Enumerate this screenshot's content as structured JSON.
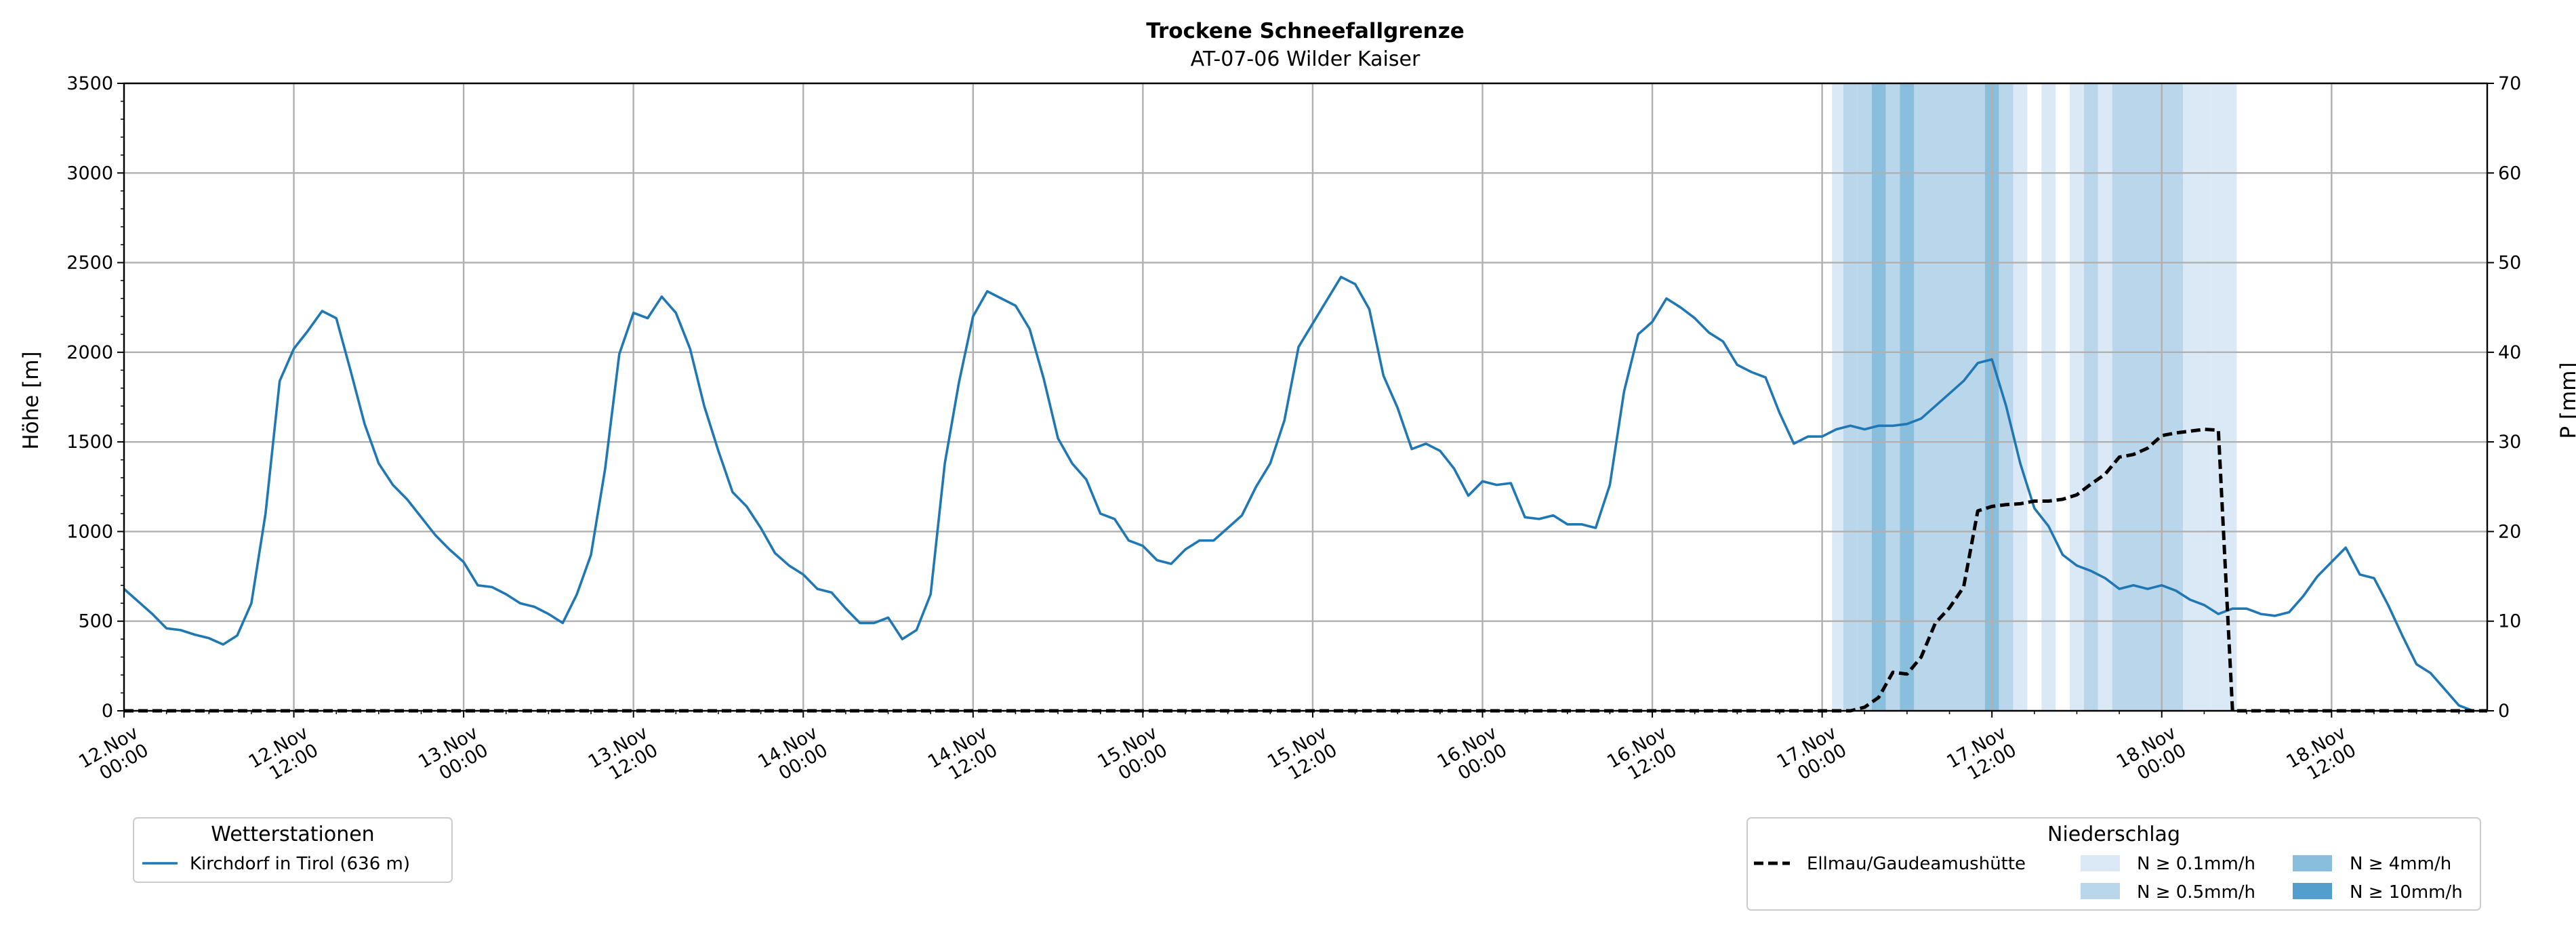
{
  "chart_data": {
    "type": "line",
    "title": "Trockene Schneefallgrenze",
    "subtitle": "AT-07-06 Wilder Kaiser",
    "ylabel_left": "Höhe [m]",
    "ylabel_right": "P [mm]",
    "ylim_left": [
      0,
      3500
    ],
    "ylim_right": [
      0,
      70
    ],
    "yticks_left": [
      "0",
      "500",
      "1000",
      "1500",
      "2000",
      "2500",
      "3000",
      "3500"
    ],
    "yticks_right": [
      "0",
      "10",
      "20",
      "30",
      "40",
      "50",
      "60",
      "70"
    ],
    "x_unit": "hours since 12.Nov 00:00",
    "xlim": [
      0,
      167
    ],
    "xticks": [
      {
        "x": 0,
        "l1": "12.Nov",
        "l2": "00:00"
      },
      {
        "x": 12,
        "l1": "12.Nov",
        "l2": "12:00"
      },
      {
        "x": 24,
        "l1": "13.Nov",
        "l2": "00:00"
      },
      {
        "x": 36,
        "l1": "13.Nov",
        "l2": "12:00"
      },
      {
        "x": 48,
        "l1": "14.Nov",
        "l2": "00:00"
      },
      {
        "x": 60,
        "l1": "14.Nov",
        "l2": "12:00"
      },
      {
        "x": 72,
        "l1": "15.Nov",
        "l2": "00:00"
      },
      {
        "x": 84,
        "l1": "15.Nov",
        "l2": "12:00"
      },
      {
        "x": 96,
        "l1": "16.Nov",
        "l2": "00:00"
      },
      {
        "x": 108,
        "l1": "16.Nov",
        "l2": "12:00"
      },
      {
        "x": 120,
        "l1": "17.Nov",
        "l2": "00:00"
      },
      {
        "x": 132,
        "l1": "17.Nov",
        "l2": "12:00"
      },
      {
        "x": 144,
        "l1": "18.Nov",
        "l2": "00:00"
      },
      {
        "x": 156,
        "l1": "18.Nov",
        "l2": "12:00"
      }
    ],
    "grid": true,
    "series": [
      {
        "name": "Kirchdorf in Tirol (636 m)",
        "color": "#1f77b4",
        "style": "solid",
        "axis": "left",
        "points": [
          [
            0,
            680
          ],
          [
            1,
            610
          ],
          [
            2,
            540
          ],
          [
            3,
            460
          ],
          [
            4,
            450
          ],
          [
            5,
            425
          ],
          [
            6,
            405
          ],
          [
            7,
            370
          ],
          [
            8,
            420
          ],
          [
            9,
            600
          ],
          [
            10,
            1100
          ],
          [
            11,
            1840
          ],
          [
            12,
            2020
          ],
          [
            13,
            2120
          ],
          [
            14,
            2230
          ],
          [
            15,
            2190
          ],
          [
            16,
            1900
          ],
          [
            17,
            1600
          ],
          [
            18,
            1380
          ],
          [
            19,
            1260
          ],
          [
            20,
            1180
          ],
          [
            21,
            1080
          ],
          [
            22,
            980
          ],
          [
            23,
            900
          ],
          [
            24,
            830
          ],
          [
            25,
            700
          ],
          [
            26,
            690
          ],
          [
            27,
            650
          ],
          [
            28,
            600
          ],
          [
            29,
            580
          ],
          [
            30,
            540
          ],
          [
            31,
            490
          ],
          [
            32,
            650
          ],
          [
            33,
            870
          ],
          [
            34,
            1350
          ],
          [
            35,
            1990
          ],
          [
            36,
            2220
          ],
          [
            37,
            2190
          ],
          [
            38,
            2310
          ],
          [
            39,
            2220
          ],
          [
            40,
            2020
          ],
          [
            41,
            1700
          ],
          [
            42,
            1450
          ],
          [
            43,
            1220
          ],
          [
            44,
            1140
          ],
          [
            45,
            1020
          ],
          [
            46,
            880
          ],
          [
            47,
            810
          ],
          [
            48,
            760
          ],
          [
            49,
            680
          ],
          [
            50,
            660
          ],
          [
            51,
            570
          ],
          [
            52,
            490
          ],
          [
            53,
            490
          ],
          [
            54,
            520
          ],
          [
            55,
            400
          ],
          [
            56,
            450
          ],
          [
            57,
            650
          ],
          [
            58,
            1380
          ],
          [
            59,
            1830
          ],
          [
            60,
            2200
          ],
          [
            61,
            2340
          ],
          [
            62,
            2300
          ],
          [
            63,
            2260
          ],
          [
            64,
            2130
          ],
          [
            65,
            1850
          ],
          [
            66,
            1520
          ],
          [
            67,
            1380
          ],
          [
            68,
            1290
          ],
          [
            69,
            1100
          ],
          [
            70,
            1070
          ],
          [
            71,
            950
          ],
          [
            72,
            920
          ],
          [
            73,
            840
          ],
          [
            74,
            820
          ],
          [
            75,
            900
          ],
          [
            76,
            950
          ],
          [
            77,
            950
          ],
          [
            78,
            1020
          ],
          [
            79,
            1090
          ],
          [
            80,
            1250
          ],
          [
            81,
            1380
          ],
          [
            82,
            1620
          ],
          [
            83,
            2030
          ],
          [
            84,
            2160
          ],
          [
            85,
            2290
          ],
          [
            86,
            2420
          ],
          [
            87,
            2380
          ],
          [
            88,
            2240
          ],
          [
            89,
            1870
          ],
          [
            90,
            1690
          ],
          [
            91,
            1460
          ],
          [
            92,
            1490
          ],
          [
            93,
            1450
          ],
          [
            94,
            1350
          ],
          [
            95,
            1200
          ],
          [
            96,
            1280
          ],
          [
            97,
            1260
          ],
          [
            98,
            1270
          ],
          [
            99,
            1080
          ],
          [
            100,
            1070
          ],
          [
            101,
            1090
          ],
          [
            102,
            1040
          ],
          [
            103,
            1040
          ],
          [
            104,
            1020
          ],
          [
            105,
            1260
          ],
          [
            106,
            1780
          ],
          [
            107,
            2100
          ],
          [
            108,
            2170
          ],
          [
            109,
            2300
          ],
          [
            110,
            2250
          ],
          [
            111,
            2190
          ],
          [
            112,
            2110
          ],
          [
            113,
            2060
          ],
          [
            114,
            1930
          ],
          [
            115,
            1890
          ],
          [
            116,
            1860
          ],
          [
            117,
            1660
          ],
          [
            118,
            1490
          ],
          [
            119,
            1530
          ],
          [
            120,
            1530
          ],
          [
            121,
            1570
          ],
          [
            122,
            1590
          ],
          [
            123,
            1570
          ],
          [
            124,
            1590
          ],
          [
            125,
            1590
          ],
          [
            126,
            1600
          ],
          [
            127,
            1630
          ],
          [
            128,
            1700
          ],
          [
            129,
            1770
          ],
          [
            130,
            1840
          ],
          [
            131,
            1940
          ],
          [
            132,
            1960
          ],
          [
            133,
            1700
          ],
          [
            134,
            1380
          ],
          [
            135,
            1130
          ],
          [
            136,
            1030
          ],
          [
            137,
            870
          ],
          [
            138,
            810
          ],
          [
            139,
            780
          ],
          [
            140,
            740
          ],
          [
            141,
            680
          ],
          [
            142,
            700
          ],
          [
            143,
            680
          ],
          [
            144,
            700
          ],
          [
            145,
            670
          ],
          [
            146,
            620
          ],
          [
            147,
            590
          ],
          [
            148,
            540
          ],
          [
            149,
            570
          ],
          [
            150,
            570
          ],
          [
            151,
            540
          ],
          [
            152,
            530
          ],
          [
            153,
            550
          ],
          [
            154,
            640
          ],
          [
            155,
            750
          ],
          [
            156,
            830
          ],
          [
            157,
            910
          ],
          [
            158,
            760
          ],
          [
            159,
            740
          ],
          [
            160,
            590
          ],
          [
            161,
            420
          ],
          [
            162,
            260
          ],
          [
            163,
            210
          ],
          [
            164,
            120
          ],
          [
            165,
            30
          ],
          [
            166,
            0
          ]
        ]
      },
      {
        "name": "Ellmau/Gaudeamushütte",
        "color": "#000000",
        "style": "dashed",
        "axis": "right",
        "points": [
          [
            0,
            0
          ],
          [
            122,
            0
          ],
          [
            123,
            0.4
          ],
          [
            124,
            1.5
          ],
          [
            125,
            4.3
          ],
          [
            126,
            4.1
          ],
          [
            127,
            6
          ],
          [
            128,
            9.8
          ],
          [
            129,
            11.5
          ],
          [
            130,
            13.8
          ],
          [
            131,
            22.3
          ],
          [
            132,
            22.8
          ],
          [
            133,
            23
          ],
          [
            134,
            23.1
          ],
          [
            135,
            23.4
          ],
          [
            136,
            23.4
          ],
          [
            137,
            23.6
          ],
          [
            138,
            24.1
          ],
          [
            139,
            25.3
          ],
          [
            140,
            26.4
          ],
          [
            141,
            28.3
          ],
          [
            142,
            28.6
          ],
          [
            143,
            29.3
          ],
          [
            144,
            30.7
          ],
          [
            145,
            31
          ],
          [
            146,
            31.2
          ],
          [
            147,
            31.4
          ],
          [
            148,
            31.3
          ],
          [
            149,
            0
          ],
          [
            167,
            0
          ]
        ]
      }
    ],
    "precip_bands": [
      {
        "x0": 120.7,
        "x1": 121.5,
        "level": 1
      },
      {
        "x0": 121.5,
        "x1": 122.5,
        "level": 2
      },
      {
        "x0": 122.5,
        "x1": 123.5,
        "level": 2
      },
      {
        "x0": 123.5,
        "x1": 124.5,
        "level": 3
      },
      {
        "x0": 124.5,
        "x1": 125.5,
        "level": 2
      },
      {
        "x0": 125.5,
        "x1": 126.5,
        "level": 3
      },
      {
        "x0": 126.5,
        "x1": 131.5,
        "level": 2
      },
      {
        "x0": 131.5,
        "x1": 132.5,
        "level": 3
      },
      {
        "x0": 132.5,
        "x1": 133.5,
        "level": 2
      },
      {
        "x0": 133.5,
        "x1": 134.5,
        "level": 1
      },
      {
        "x0": 135.5,
        "x1": 136.5,
        "level": 1
      },
      {
        "x0": 137.5,
        "x1": 138.5,
        "level": 1
      },
      {
        "x0": 138.5,
        "x1": 139.5,
        "level": 2
      },
      {
        "x0": 139.5,
        "x1": 140.5,
        "level": 1
      },
      {
        "x0": 140.5,
        "x1": 145.5,
        "level": 2
      },
      {
        "x0": 145.5,
        "x1": 147.5,
        "level": 1
      },
      {
        "x0": 147.5,
        "x1": 149.3,
        "level": 1
      }
    ],
    "legend_stations": {
      "title": "Wetterstationen",
      "items": [
        "Kirchdorf in Tirol (636 m)"
      ]
    },
    "legend_precip": {
      "title": "Niederschlag",
      "line_label": "Ellmau/Gaudeamushütte",
      "levels": [
        {
          "label": "N ≥ 0.1mm/h",
          "color": "#dbe9f6"
        },
        {
          "label": "N ≥ 0.5mm/h",
          "color": "#bad6eb"
        },
        {
          "label": "N ≥ 4mm/h",
          "color": "#89bedc"
        },
        {
          "label": "N ≥ 10mm/h",
          "color": "#539ecd"
        }
      ]
    }
  }
}
